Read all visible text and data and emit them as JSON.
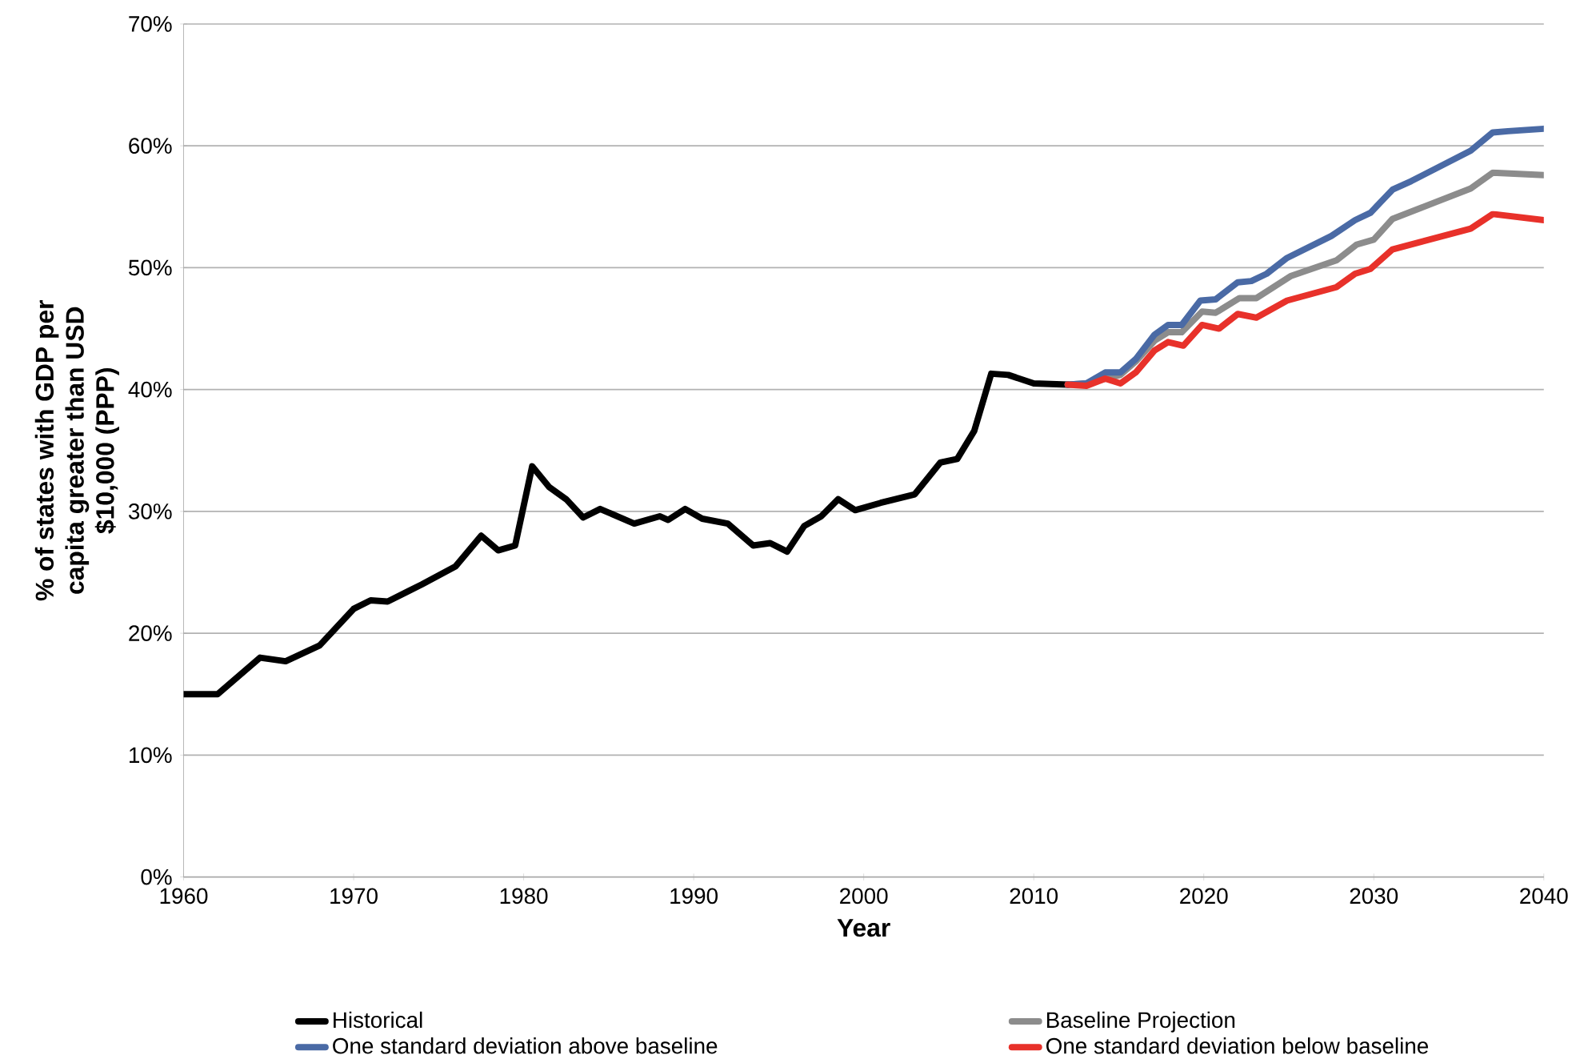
{
  "chart_data": {
    "type": "line",
    "xlabel": "Year",
    "ylabel": "% of states with GDP per capita greater than USD $10,000 (PPP)",
    "xlim": [
      1960,
      2040
    ],
    "xticks": [
      1960,
      1970,
      1980,
      1990,
      2000,
      2010,
      2020,
      2030,
      2040
    ],
    "ylim": [
      0,
      70
    ],
    "yticks": [
      {
        "value": 0,
        "label": "0%"
      },
      {
        "value": 10,
        "label": "10%"
      },
      {
        "value": 20,
        "label": "20%"
      },
      {
        "value": 30,
        "label": "30%"
      },
      {
        "value": 40,
        "label": "40%"
      },
      {
        "value": 50,
        "label": "50%"
      },
      {
        "value": 60,
        "label": "60%"
      },
      {
        "value": 70,
        "label": "70%"
      }
    ],
    "grid": "y",
    "legend": "bottom",
    "marker": "none",
    "line_style": "solid",
    "series": [
      {
        "name": "Historical",
        "color": "#000000",
        "x": [
          1960,
          1962,
          1964.5,
          1966,
          1968,
          1970,
          1971,
          1972,
          1974,
          1976,
          1977.5,
          1978.5,
          1979.5,
          1980.5,
          1981.5,
          1982.5,
          1983.5,
          1984.5,
          1986.5,
          1988,
          1988.5,
          1989.5,
          1990.5,
          1992,
          1993.5,
          1994.5,
          1995.5,
          1996.5,
          1997.5,
          1998.5,
          1999.5,
          2001,
          2003,
          2004.5,
          2005.5,
          2006.5,
          2007.5,
          2008.5,
          2010,
          2012
        ],
        "values": [
          15,
          15,
          18,
          17.7,
          19,
          22,
          22.7,
          22.6,
          24,
          25.5,
          28,
          26.8,
          27.2,
          33.7,
          32,
          31,
          29.5,
          30.2,
          29,
          29.6,
          29.3,
          30.2,
          29.4,
          29,
          27.2,
          27.4,
          26.7,
          28.8,
          29.6,
          31,
          30.1,
          30.7,
          31.4,
          34,
          34.3,
          36.6,
          41.3,
          41.2,
          40.5,
          40.4
        ]
      },
      {
        "name": "Baseline Projection",
        "color": "#8c8c8c",
        "x": [
          2012,
          2013.1,
          2015.1,
          2016,
          2017.1,
          2017.9,
          2018.7,
          2019.9,
          2020.7,
          2022.1,
          2023.1,
          2025.1,
          2027.8,
          2029,
          2030,
          2031.1,
          2035.7,
          2037,
          2040
        ],
        "values": [
          40.4,
          40.5,
          41.2,
          42.3,
          44.0,
          44.7,
          44.7,
          46.4,
          46.3,
          47.5,
          47.5,
          49.3,
          50.6,
          51.9,
          52.3,
          54.0,
          56.5,
          57.8,
          57.6
        ]
      },
      {
        "name": "One standard deviation above baseline",
        "color": "#4a6aa5",
        "x": [
          2012,
          2013.1,
          2014.2,
          2015.1,
          2016,
          2017.1,
          2017.9,
          2018.7,
          2019.8,
          2020.7,
          2022,
          2022.8,
          2023.7,
          2024.9,
          2027.5,
          2028.9,
          2029.8,
          2031.1,
          2032.2,
          2035.7,
          2037,
          2037.9,
          2040
        ],
        "values": [
          40.4,
          40.5,
          41.4,
          41.4,
          42.5,
          44.5,
          45.3,
          45.3,
          47.3,
          47.4,
          48.8,
          48.9,
          49.5,
          50.8,
          52.6,
          53.9,
          54.5,
          56.4,
          57.1,
          59.6,
          61.1,
          61.2,
          61.4
        ]
      },
      {
        "name": "One standard deviation below baseline",
        "color": "#e8312a",
        "x": [
          2012,
          2013.1,
          2014.2,
          2015.1,
          2016,
          2017.1,
          2017.9,
          2018.8,
          2019.9,
          2020.9,
          2022,
          2023.1,
          2024.9,
          2027.8,
          2028.9,
          2029.8,
          2031.1,
          2035.7,
          2037,
          2040
        ],
        "values": [
          40.4,
          40.3,
          40.9,
          40.5,
          41.4,
          43.2,
          43.9,
          43.6,
          45.3,
          45.0,
          46.2,
          45.9,
          47.3,
          48.4,
          49.5,
          49.9,
          51.5,
          53.2,
          54.4,
          53.9
        ]
      }
    ]
  }
}
